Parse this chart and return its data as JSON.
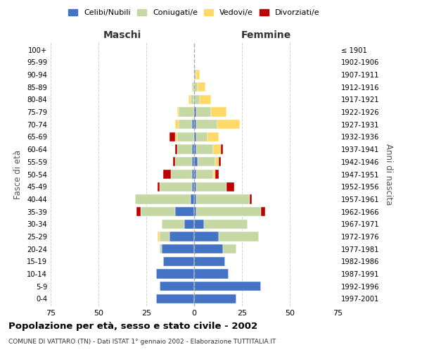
{
  "age_groups": [
    "0-4",
    "5-9",
    "10-14",
    "15-19",
    "20-24",
    "25-29",
    "30-34",
    "35-39",
    "40-44",
    "45-49",
    "50-54",
    "55-59",
    "60-64",
    "65-69",
    "70-74",
    "75-79",
    "80-84",
    "85-89",
    "90-94",
    "95-99",
    "100+"
  ],
  "birth_years": [
    "1997-2001",
    "1992-1996",
    "1987-1991",
    "1982-1986",
    "1977-1981",
    "1972-1976",
    "1967-1971",
    "1962-1966",
    "1957-1961",
    "1952-1956",
    "1947-1951",
    "1942-1946",
    "1937-1941",
    "1932-1936",
    "1927-1931",
    "1922-1926",
    "1917-1921",
    "1912-1916",
    "1907-1911",
    "1902-1906",
    "≤ 1901"
  ],
  "male": {
    "celibi": [
      20,
      18,
      20,
      16,
      17,
      13,
      5,
      10,
      2,
      1,
      1,
      1,
      1,
      0,
      1,
      0,
      0,
      0,
      0,
      0,
      0
    ],
    "coniugati": [
      0,
      0,
      0,
      0,
      1,
      5,
      12,
      18,
      29,
      17,
      11,
      9,
      8,
      9,
      7,
      8,
      2,
      1,
      0,
      0,
      0
    ],
    "vedovi": [
      0,
      0,
      0,
      0,
      0,
      1,
      0,
      0,
      0,
      0,
      0,
      0,
      0,
      1,
      2,
      1,
      1,
      0,
      0,
      0,
      0
    ],
    "divorziati": [
      0,
      0,
      0,
      0,
      0,
      0,
      0,
      2,
      0,
      1,
      4,
      1,
      1,
      3,
      0,
      0,
      0,
      0,
      0,
      0,
      0
    ]
  },
  "female": {
    "nubili": [
      22,
      35,
      18,
      16,
      15,
      13,
      5,
      1,
      1,
      1,
      1,
      2,
      1,
      1,
      1,
      1,
      0,
      0,
      0,
      0,
      0
    ],
    "coniugate": [
      0,
      0,
      0,
      0,
      7,
      21,
      23,
      34,
      28,
      16,
      9,
      9,
      9,
      6,
      11,
      8,
      3,
      2,
      1,
      0,
      0
    ],
    "vedove": [
      0,
      0,
      0,
      0,
      0,
      0,
      0,
      0,
      0,
      0,
      1,
      2,
      4,
      6,
      12,
      8,
      6,
      4,
      2,
      0,
      0
    ],
    "divorziate": [
      0,
      0,
      0,
      0,
      0,
      0,
      0,
      2,
      1,
      4,
      2,
      1,
      1,
      0,
      0,
      0,
      0,
      0,
      0,
      0,
      0
    ]
  },
  "colors": {
    "celibi": "#4472C4",
    "coniugati": "#c5d8a4",
    "vedovi": "#FFD966",
    "divorziati": "#C00000"
  },
  "title": "Popolazione per età, sesso e stato civile - 2002",
  "subtitle": "COMUNE DI VATTARO (TN) - Dati ISTAT 1° gennaio 2002 - Elaborazione TUTTITALIA.IT",
  "xlim": 75,
  "ylabel_left": "Fasce di età",
  "ylabel_right": "Anni di nascita",
  "xlabel_left": "Maschi",
  "xlabel_right": "Femmine",
  "background_color": "#ffffff",
  "grid_color": "#cccccc"
}
